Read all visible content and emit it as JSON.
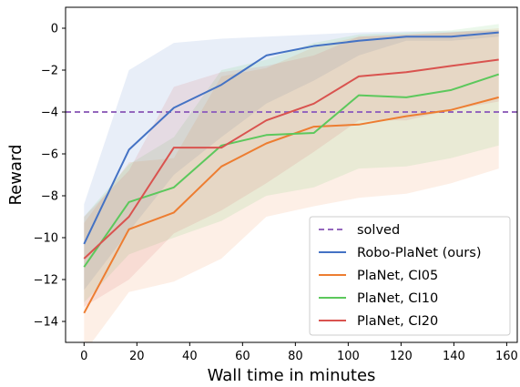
{
  "chart_data": {
    "type": "line",
    "title": "",
    "xlabel": "Wall time in minutes",
    "ylabel": "Reward",
    "xlim": [
      -7,
      164
    ],
    "ylim": [
      -15,
      1
    ],
    "xticks": [
      0,
      20,
      40,
      60,
      80,
      100,
      120,
      140,
      160
    ],
    "yticks": [
      0,
      -2,
      -4,
      -6,
      -8,
      -10,
      -12,
      -14
    ],
    "x_tick_labels": [
      "0",
      "20",
      "40",
      "60",
      "80",
      "100",
      "120",
      "140",
      "160"
    ],
    "y_tick_labels": [
      "0",
      "−2",
      "−4",
      "−6",
      "−8",
      "−10",
      "−12",
      "−14"
    ],
    "grid": false,
    "legend_position": "lower-right",
    "reference_line": {
      "name": "solved",
      "y": -4,
      "style": "dashed",
      "color": "#9467bd"
    },
    "series": [
      {
        "name": "Robo-PlaNet (ours)",
        "color": "#4472c4",
        "x": [
          0,
          17,
          34,
          52,
          69,
          87,
          104,
          122,
          139,
          157
        ],
        "y": [
          -10.3,
          -5.8,
          -3.8,
          -2.7,
          -1.3,
          -0.85,
          -0.6,
          -0.4,
          -0.4,
          -0.2
        ],
        "lower": [
          -12.5,
          -9.7,
          -7.0,
          -5.2,
          -3.6,
          -2.5,
          -1.3,
          -0.6,
          -0.6,
          -0.4
        ],
        "upper": [
          -8.4,
          -2.0,
          -0.7,
          -0.5,
          -0.4,
          -0.3,
          -0.2,
          -0.15,
          -0.15,
          -0.1
        ]
      },
      {
        "name": "PlaNet, CI05",
        "color": "#ed7d31",
        "x": [
          0,
          17,
          34,
          52,
          69,
          87,
          104,
          122,
          139,
          157
        ],
        "y": [
          -13.6,
          -9.6,
          -8.8,
          -6.6,
          -5.5,
          -4.7,
          -4.6,
          -4.2,
          -3.9,
          -3.3
        ],
        "lower": [
          -15.5,
          -12.6,
          -12.1,
          -11.0,
          -9.0,
          -8.5,
          -8.1,
          -7.9,
          -7.4,
          -6.7
        ],
        "upper": [
          -9.3,
          -6.4,
          -6.2,
          -2.3,
          -1.9,
          -0.9,
          -0.4,
          -0.3,
          -0.2,
          0.0
        ]
      },
      {
        "name": "PlaNet, CI10",
        "color": "#5cc85c",
        "x": [
          0,
          17,
          34,
          52,
          69,
          87,
          104,
          122,
          139,
          157
        ],
        "y": [
          -11.4,
          -8.3,
          -7.6,
          -5.6,
          -5.1,
          -5.0,
          -3.2,
          -3.3,
          -2.95,
          -2.2
        ],
        "lower": [
          -13.1,
          -10.8,
          -10.0,
          -9.2,
          -8.0,
          -7.6,
          -6.7,
          -6.6,
          -6.2,
          -5.6
        ],
        "upper": [
          -9.0,
          -6.5,
          -5.2,
          -2.0,
          -1.5,
          -0.7,
          -0.3,
          -0.2,
          -0.1,
          0.2
        ]
      },
      {
        "name": "PlaNet, CI20",
        "color": "#d9534f",
        "x": [
          0,
          17,
          34,
          52,
          69,
          87,
          104,
          122,
          139,
          157
        ],
        "y": [
          -11.0,
          -9.0,
          -5.7,
          -5.7,
          -4.4,
          -3.6,
          -2.3,
          -2.1,
          -1.8,
          -1.5
        ],
        "lower": [
          -13.3,
          -12.0,
          -9.8,
          -8.7,
          -7.4,
          -5.9,
          -4.4,
          -4.4,
          -3.9,
          -3.5
        ],
        "upper": [
          -9.0,
          -6.8,
          -2.8,
          -2.1,
          -1.8,
          -1.3,
          -0.4,
          -0.3,
          -0.2,
          -0.1
        ]
      }
    ]
  }
}
